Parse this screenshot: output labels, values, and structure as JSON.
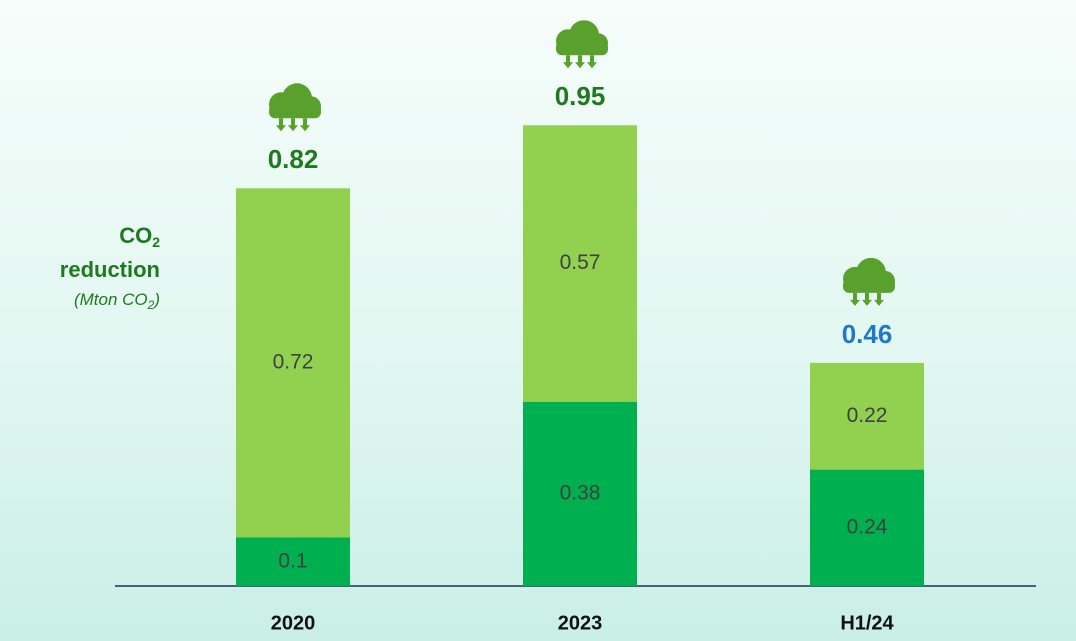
{
  "chart_data": {
    "type": "stacked_bar",
    "y_label": {
      "title": [
        "CO",
        "2"
      ],
      "title_line2": "reduction",
      "unit": [
        "(Mton CO",
        "2",
        ")"
      ]
    },
    "categories": [
      "2020",
      "2023",
      "H1/24"
    ],
    "series": [
      {
        "color": "#00b050",
        "values": [
          0.1,
          0.38,
          0.24
        ]
      },
      {
        "color": "#92d050",
        "values": [
          0.72,
          0.57,
          0.22
        ]
      }
    ],
    "totals": [
      0.82,
      0.95,
      0.46
    ],
    "total_colors": [
      "#1e7a1e",
      "#1e7a1e",
      "#1f78c8"
    ]
  }
}
